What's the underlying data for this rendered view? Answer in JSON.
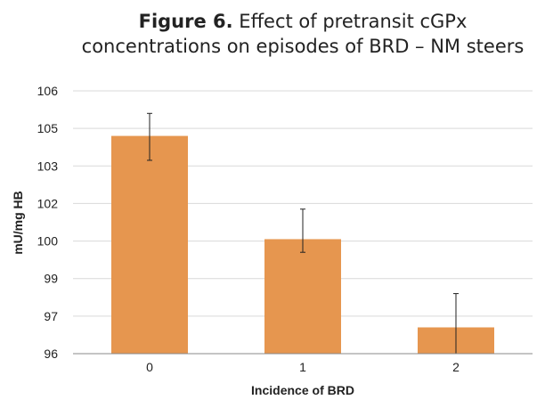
{
  "chart_data": {
    "type": "bar",
    "title_lead": "Figure 6.",
    "title_line1_rest": " Effect of pretransit cGPx",
    "title_line2": "concentrations on episodes of BRD – NM steers",
    "xlabel": "Incidence of BRD",
    "ylabel": "mU/mg HB",
    "categories": [
      "0",
      "1",
      "2"
    ],
    "values": [
      104.6,
      100.1,
      96.7
    ],
    "error_low": [
      103.3,
      99.7,
      96.0
    ],
    "error_high": [
      105.4,
      101.7,
      98.2
    ],
    "y_tick_labels": [
      "96",
      "97",
      "99",
      "100",
      "102",
      "103",
      "105",
      "106"
    ],
    "bar_color": "#e6964f",
    "grid": true
  }
}
